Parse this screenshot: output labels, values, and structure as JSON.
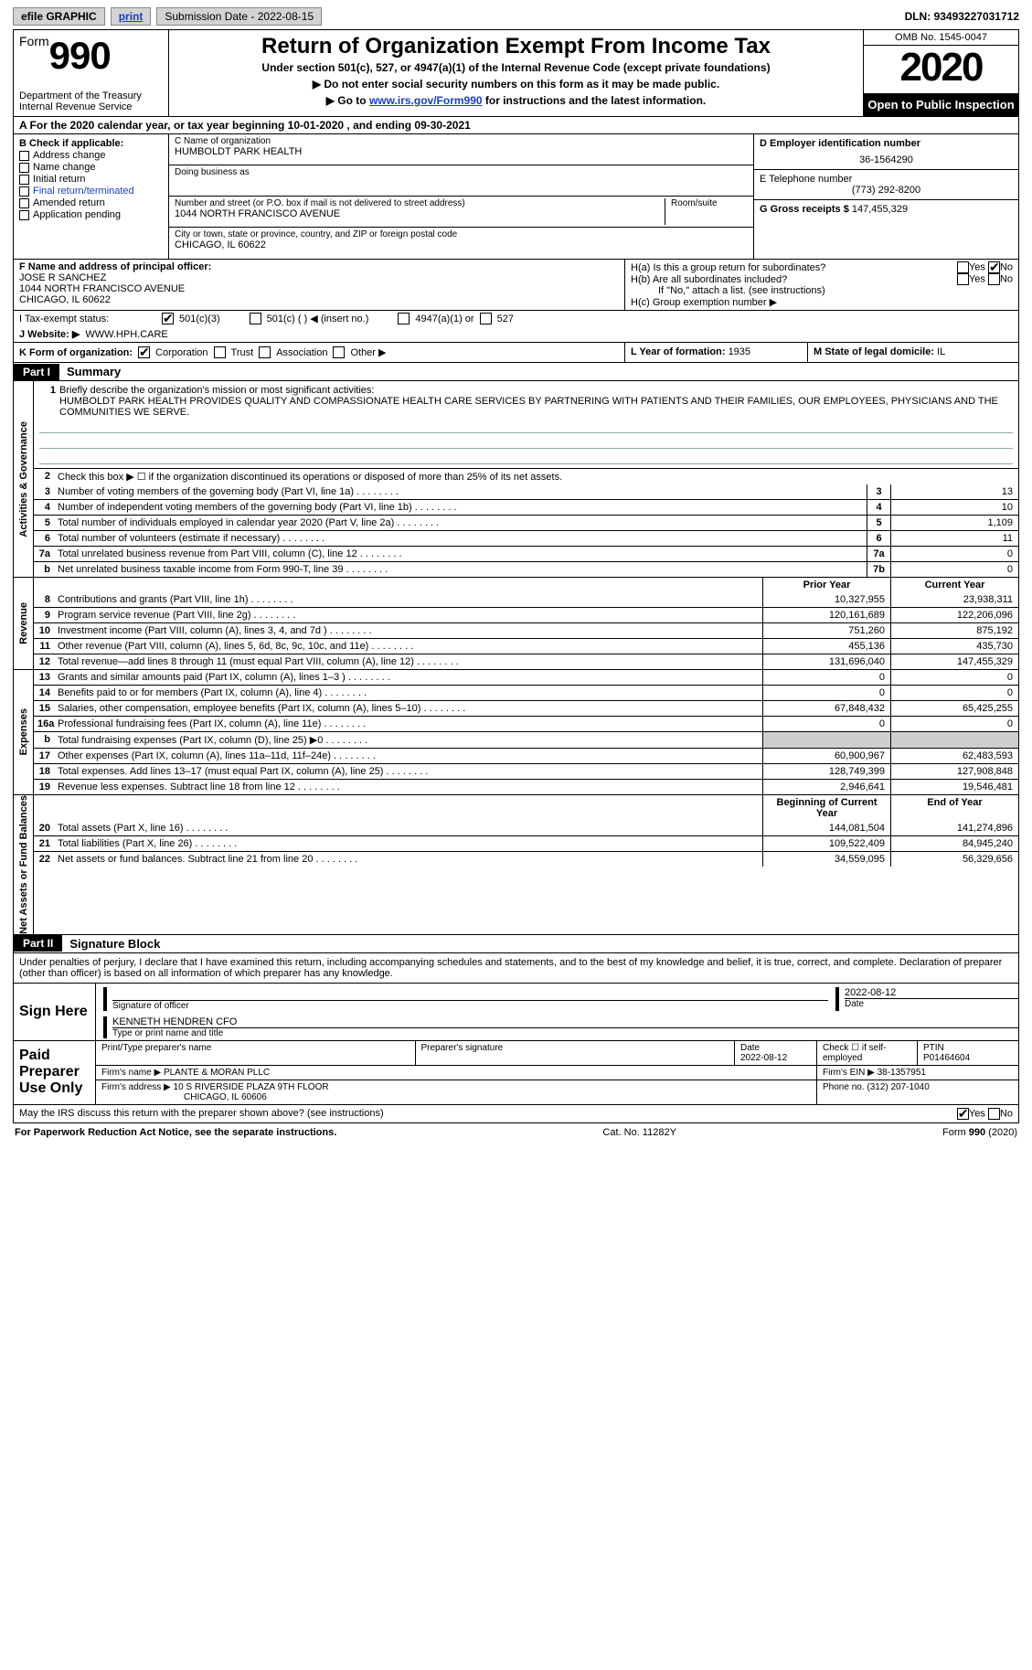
{
  "topbar": {
    "efile": "efile GRAPHIC",
    "print": "print",
    "submission_label": "Submission Date - ",
    "submission_date": "2022-08-15",
    "dln_label": "DLN: ",
    "dln": "93493227031712"
  },
  "header": {
    "form_word": "Form",
    "form_num": "990",
    "dept": "Department of the Treasury\nInternal Revenue Service",
    "title": "Return of Organization Exempt From Income Tax",
    "subtitle": "Under section 501(c), 527, or 4947(a)(1) of the Internal Revenue Code (except private foundations)",
    "line1": "▶ Do not enter social security numbers on this form as it may be made public.",
    "line2_pre": "▶ Go to ",
    "line2_link": "www.irs.gov/Form990",
    "line2_post": " for instructions and the latest information.",
    "omb": "OMB No. 1545-0047",
    "year": "2020",
    "open": "Open to Public Inspection"
  },
  "lineA": {
    "pre": "A For the 2020 calendar year, or tax year beginning ",
    "begin": "10-01-2020",
    "mid": " , and ending ",
    "end": "09-30-2021"
  },
  "boxB": {
    "title": "B Check if applicable:",
    "items": [
      "Address change",
      "Name change",
      "Initial return",
      "Final return/terminated",
      "Amended return",
      "Application pending"
    ]
  },
  "boxC": {
    "name_label": "C Name of organization",
    "name": "HUMBOLDT PARK HEALTH",
    "dba_label": "Doing business as",
    "addr_label": "Number and street (or P.O. box if mail is not delivered to street address)",
    "room_label": "Room/suite",
    "addr": "1044 NORTH FRANCISCO AVENUE",
    "city_label": "City or town, state or province, country, and ZIP or foreign postal code",
    "city": "CHICAGO, IL  60622"
  },
  "boxD": {
    "label": "D Employer identification number",
    "val": "36-1564290"
  },
  "boxE": {
    "label": "E Telephone number",
    "val": "(773) 292-8200"
  },
  "boxG": {
    "label": "G Gross receipts $ ",
    "val": "147,455,329"
  },
  "boxF": {
    "label": "F Name and address of principal officer:",
    "name": "JOSE R SANCHEZ",
    "addr1": "1044 NORTH FRANCISCO AVENUE",
    "addr2": "CHICAGO, IL  60622"
  },
  "boxH": {
    "a": "H(a)  Is this a group return for subordinates?",
    "b": "H(b)  Are all subordinates included?",
    "b_note": "If \"No,\" attach a list. (see instructions)",
    "c": "H(c)  Group exemption number ▶",
    "yes": "Yes",
    "no": "No"
  },
  "lineI": {
    "label": "I    Tax-exempt status:",
    "o1": "501(c)(3)",
    "o2": "501(c) (  ) ◀ (insert no.)",
    "o3": "4947(a)(1) or",
    "o4": "527"
  },
  "lineJ": {
    "label": "J   Website: ▶",
    "val": " WWW.HPH.CARE"
  },
  "lineK": {
    "label": "K Form of organization:",
    "o1": "Corporation",
    "o2": "Trust",
    "o3": "Association",
    "o4": "Other ▶"
  },
  "lineL": {
    "label": "L Year of formation: ",
    "val": "1935"
  },
  "lineM": {
    "label": "M State of legal domicile: ",
    "val": "IL"
  },
  "part1": {
    "tab": "Part I",
    "title": "Summary"
  },
  "mission": {
    "n": "1",
    "label": "Briefly describe the organization's mission or most significant activities:",
    "text": "HUMBOLDT PARK HEALTH PROVIDES QUALITY AND COMPASSIONATE HEALTH CARE SERVICES BY PARTNERING WITH PATIENTS AND THEIR FAMILIES, OUR EMPLOYEES, PHYSICIANS AND THE COMMUNITIES WE SERVE."
  },
  "gov": {
    "vlabel": "Activities & Governance",
    "r2": "Check this box ▶ ☐ if the organization discontinued its operations or disposed of more than 25% of its net assets.",
    "rows": [
      {
        "n": "3",
        "d": "Number of voting members of the governing body (Part VI, line 1a)",
        "box": "3",
        "v": "13"
      },
      {
        "n": "4",
        "d": "Number of independent voting members of the governing body (Part VI, line 1b)",
        "box": "4",
        "v": "10"
      },
      {
        "n": "5",
        "d": "Total number of individuals employed in calendar year 2020 (Part V, line 2a)",
        "box": "5",
        "v": "1,109"
      },
      {
        "n": "6",
        "d": "Total number of volunteers (estimate if necessary)",
        "box": "6",
        "v": "11"
      },
      {
        "n": "7a",
        "d": "Total unrelated business revenue from Part VIII, column (C), line 12",
        "box": "7a",
        "v": "0"
      },
      {
        "n": "b",
        "d": "Net unrelated business taxable income from Form 990-T, line 39",
        "box": "7b",
        "v": "0"
      }
    ]
  },
  "twocol_hdr": {
    "py": "Prior Year",
    "cy": "Current Year",
    "bcy": "Beginning of Current Year",
    "eoy": "End of Year"
  },
  "rev": {
    "vlabel": "Revenue",
    "rows": [
      {
        "n": "8",
        "d": "Contributions and grants (Part VIII, line 1h)",
        "py": "10,327,955",
        "cy": "23,938,311"
      },
      {
        "n": "9",
        "d": "Program service revenue (Part VIII, line 2g)",
        "py": "120,161,689",
        "cy": "122,206,096"
      },
      {
        "n": "10",
        "d": "Investment income (Part VIII, column (A), lines 3, 4, and 7d )",
        "py": "751,260",
        "cy": "875,192"
      },
      {
        "n": "11",
        "d": "Other revenue (Part VIII, column (A), lines 5, 6d, 8c, 9c, 10c, and 11e)",
        "py": "455,136",
        "cy": "435,730"
      },
      {
        "n": "12",
        "d": "Total revenue—add lines 8 through 11 (must equal Part VIII, column (A), line 12)",
        "py": "131,696,040",
        "cy": "147,455,329"
      }
    ]
  },
  "exp": {
    "vlabel": "Expenses",
    "rows": [
      {
        "n": "13",
        "d": "Grants and similar amounts paid (Part IX, column (A), lines 1–3 )",
        "py": "0",
        "cy": "0"
      },
      {
        "n": "14",
        "d": "Benefits paid to or for members (Part IX, column (A), line 4)",
        "py": "0",
        "cy": "0"
      },
      {
        "n": "15",
        "d": "Salaries, other compensation, employee benefits (Part IX, column (A), lines 5–10)",
        "py": "67,848,432",
        "cy": "65,425,255"
      },
      {
        "n": "16a",
        "d": "Professional fundraising fees (Part IX, column (A), line 11e)",
        "py": "0",
        "cy": "0"
      },
      {
        "n": "b",
        "d": "Total fundraising expenses (Part IX, column (D), line 25) ▶0",
        "py": "",
        "cy": "",
        "shade": true
      },
      {
        "n": "17",
        "d": "Other expenses (Part IX, column (A), lines 11a–11d, 11f–24e)",
        "py": "60,900,967",
        "cy": "62,483,593"
      },
      {
        "n": "18",
        "d": "Total expenses. Add lines 13–17 (must equal Part IX, column (A), line 25)",
        "py": "128,749,399",
        "cy": "127,908,848"
      },
      {
        "n": "19",
        "d": "Revenue less expenses. Subtract line 18 from line 12",
        "py": "2,946,641",
        "cy": "19,546,481"
      }
    ]
  },
  "na": {
    "vlabel": "Net Assets or Fund Balances",
    "rows": [
      {
        "n": "20",
        "d": "Total assets (Part X, line 16)",
        "py": "144,081,504",
        "cy": "141,274,896"
      },
      {
        "n": "21",
        "d": "Total liabilities (Part X, line 26)",
        "py": "109,522,409",
        "cy": "84,945,240"
      },
      {
        "n": "22",
        "d": "Net assets or fund balances. Subtract line 21 from line 20",
        "py": "34,559,095",
        "cy": "56,329,656"
      }
    ]
  },
  "part2": {
    "tab": "Part II",
    "title": "Signature Block"
  },
  "sig": {
    "decl": "Under penalties of perjury, I declare that I have examined this return, including accompanying schedules and statements, and to the best of my knowledge and belief, it is true, correct, and complete. Declaration of preparer (other than officer) is based on all information of which preparer has any knowledge.",
    "sign_here": "Sign Here",
    "sig_officer": "Signature of officer",
    "sig_date": "2022-08-12",
    "date_lbl": "Date",
    "name_title": "KENNETH HENDREN  CFO",
    "name_title_lbl": "Type or print name and title",
    "paid": "Paid Preparer Use Only",
    "prep_name_lbl": "Print/Type preparer's name",
    "prep_sig_lbl": "Preparer's signature",
    "prep_date_lbl": "Date",
    "prep_date": "2022-08-12",
    "check_lbl": "Check ☐ if self-employed",
    "ptin_lbl": "PTIN",
    "ptin": "P01464604",
    "firm_name_lbl": "Firm's name    ▶ ",
    "firm_name": "PLANTE & MORAN PLLC",
    "firm_ein_lbl": "Firm's EIN ▶ ",
    "firm_ein": "38-1357951",
    "firm_addr_lbl": "Firm's address ▶ ",
    "firm_addr1": "10 S RIVERSIDE PLAZA 9TH FLOOR",
    "firm_addr2": "CHICAGO, IL  60606",
    "phone_lbl": "Phone no. ",
    "phone": "(312) 207-1040",
    "discuss": "May the IRS discuss this return with the preparer shown above? (see instructions)",
    "yes": "Yes",
    "no": "No"
  },
  "footer": {
    "pra": "For Paperwork Reduction Act Notice, see the separate instructions.",
    "cat": "Cat. No. 11282Y",
    "form": "Form 990 (2020)"
  }
}
